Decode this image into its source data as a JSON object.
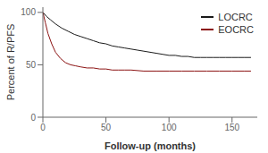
{
  "chart_data": {
    "type": "line",
    "xlabel": "Follow-up (months)",
    "ylabel": "Percent of R/PFS",
    "xlim": [
      0,
      170
    ],
    "ylim": [
      0,
      105
    ],
    "xticks": [
      0,
      50,
      100,
      150
    ],
    "yticks": [
      0,
      50,
      100
    ],
    "legend": "upper right",
    "series": [
      {
        "name": "LOCRC",
        "color": "#1a1a1a",
        "x": [
          0,
          3,
          6,
          10,
          15,
          20,
          25,
          30,
          35,
          40,
          45,
          50,
          55,
          60,
          65,
          70,
          75,
          80,
          85,
          90,
          95,
          100,
          105,
          110,
          115,
          120,
          125,
          130,
          135,
          140,
          145,
          150,
          155,
          160,
          165
        ],
        "values": [
          100,
          96,
          93,
          89,
          85,
          82,
          79,
          77,
          75,
          73,
          71,
          70,
          68,
          67,
          66,
          65,
          64,
          63,
          62,
          61,
          60,
          59,
          59,
          58,
          58,
          57,
          57,
          57,
          57,
          57,
          57,
          57,
          57,
          57,
          57
        ]
      },
      {
        "name": "EOCRC",
        "color": "#8b1212",
        "x": [
          0,
          2,
          4,
          7,
          10,
          14,
          18,
          22,
          26,
          30,
          35,
          40,
          45,
          50,
          55,
          60,
          65,
          70,
          80,
          90,
          100,
          110,
          120,
          130,
          140,
          150,
          160,
          165
        ],
        "values": [
          100,
          90,
          80,
          70,
          62,
          56,
          52,
          50,
          49,
          48,
          47,
          47,
          46,
          46,
          45,
          45,
          45,
          45,
          44,
          44,
          44,
          44,
          44,
          44,
          44,
          44,
          44,
          44
        ]
      }
    ]
  }
}
